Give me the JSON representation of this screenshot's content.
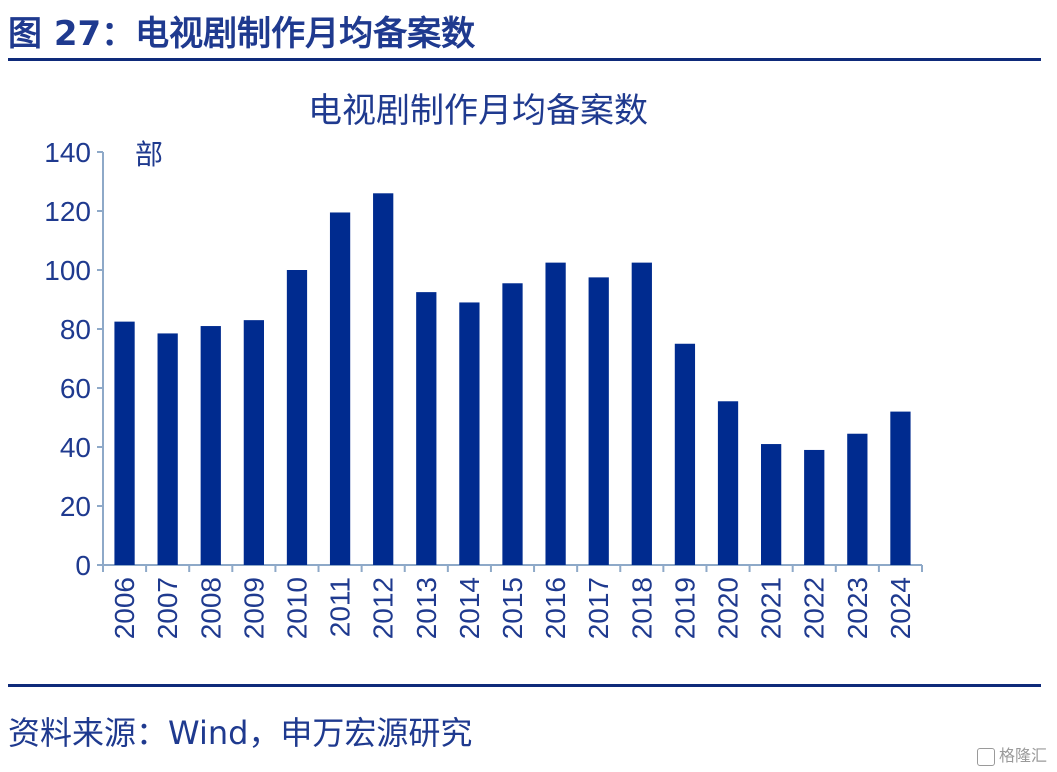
{
  "figure": {
    "title": "图 27：电视剧制作月均备案数",
    "source": "资料来源：Wind，申万宏源研究",
    "watermark": "格隆汇"
  },
  "colors": {
    "bar": "#002b8f",
    "axis": "#8ea9c8",
    "text": "#1f3a8f",
    "rule": "#0e2a7a"
  },
  "chart_data": {
    "type": "bar",
    "title": "电视剧制作月均备案数",
    "unit_label": "部",
    "xlabel": "",
    "ylabel": "",
    "ylim": [
      0,
      140
    ],
    "yticks": [
      0,
      20,
      40,
      60,
      80,
      100,
      120,
      140
    ],
    "grid": false,
    "categories": [
      "2006",
      "2007",
      "2008",
      "2009",
      "2010",
      "2011",
      "2012",
      "2013",
      "2014",
      "2015",
      "2016",
      "2017",
      "2018",
      "2019",
      "2020",
      "2021",
      "2022",
      "2023",
      "2024"
    ],
    "values": [
      82.5,
      78.5,
      81,
      83,
      100,
      119.5,
      126,
      92.5,
      89,
      95.5,
      102.5,
      97.5,
      102.5,
      75,
      55.5,
      41,
      39,
      44.5,
      52
    ]
  }
}
